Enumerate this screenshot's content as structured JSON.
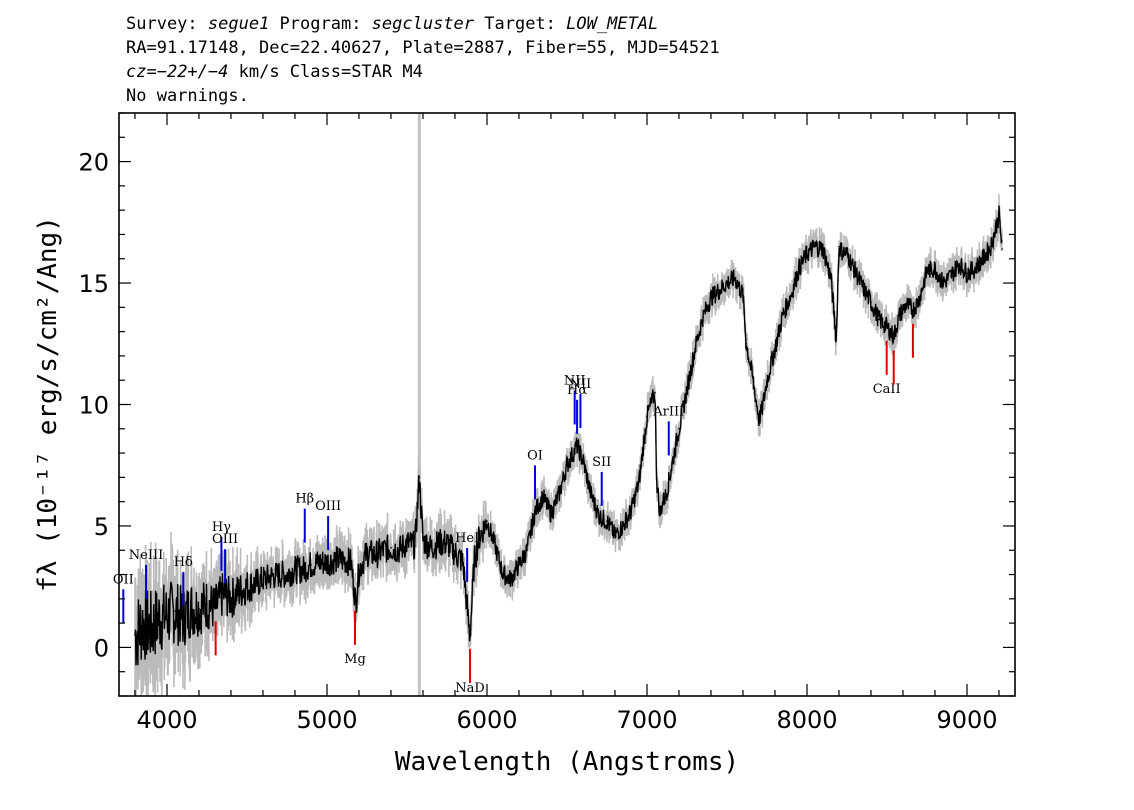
{
  "header": {
    "line1": {
      "survey_label": "Survey: ",
      "survey": "segue1",
      "program_label": " Program: ",
      "program": "segcluster",
      "target_label": " Target: ",
      "target": "LOW_METAL"
    },
    "line2": "RA=91.17148, Dec=22.40627, Plate=2887, Fiber=55, MJD=54521",
    "line3": {
      "cz_label": "cz",
      "cz_value": "=−22+/−4",
      "cz_rest": " km/s Class=STAR M4"
    },
    "line4": "No warnings."
  },
  "chart_data": {
    "type": "line",
    "xlabel": "Wavelength (Angstroms)",
    "ylabel": "fλ (10⁻¹⁷ erg/s/cm²/Ang)",
    "xlim": [
      3700,
      9300
    ],
    "ylim": [
      -2,
      22
    ],
    "x_ticks": [
      4000,
      5000,
      6000,
      7000,
      8000,
      9000
    ],
    "y_ticks": [
      0,
      5,
      10,
      15,
      20
    ],
    "sky_line_x": 5577,
    "colors": {
      "flux": "#000000",
      "error": "#bbbbbb",
      "emission": "#0000dd",
      "absorption": "#dd0000",
      "sky": "#c0c0c0"
    },
    "series": [
      {
        "x": [
          3800,
          3850,
          3900,
          3950,
          4000,
          4050,
          4100,
          4150,
          4200,
          4250,
          4300,
          4350,
          4400,
          4450,
          4500,
          4550,
          4600,
          4650,
          4700,
          4750,
          4800,
          4850,
          4900,
          4950,
          5000,
          5050,
          5100,
          5150,
          5180,
          5200,
          5250,
          5300,
          5350,
          5400,
          5450,
          5500,
          5550,
          5577,
          5600,
          5650,
          5700,
          5750,
          5800,
          5850,
          5893,
          5920,
          5950,
          6000,
          6050,
          6100,
          6150,
          6200,
          6250,
          6300,
          6350,
          6400,
          6450,
          6500,
          6563,
          6600,
          6650,
          6700,
          6750,
          6800,
          6850,
          6900,
          6950,
          7000,
          7050,
          7060,
          7080,
          7100,
          7120,
          7150,
          7200,
          7250,
          7300,
          7350,
          7400,
          7450,
          7500,
          7550,
          7600,
          7620,
          7650,
          7700,
          7720,
          7750,
          7800,
          7850,
          7900,
          7950,
          8000,
          8050,
          8100,
          8150,
          8183,
          8200,
          8220,
          8250,
          8300,
          8350,
          8400,
          8450,
          8498,
          8542,
          8580,
          8620,
          8662,
          8700,
          8750,
          8800,
          8850,
          8900,
          8950,
          9000,
          9050,
          9100,
          9150,
          9200,
          9220
        ],
        "y": [
          0.5,
          1,
          0.8,
          1.2,
          1.3,
          1.5,
          1.2,
          1.6,
          1.6,
          1.8,
          1.6,
          2.2,
          2,
          2.3,
          2.5,
          2.6,
          2.8,
          2.9,
          3,
          3,
          3.2,
          3.2,
          3.4,
          3.5,
          3.5,
          3.6,
          3.6,
          3.5,
          1.8,
          3.2,
          3.9,
          3.8,
          4,
          4.1,
          4,
          4.3,
          4.2,
          7,
          4.4,
          4.1,
          4.3,
          4.3,
          3.9,
          3.5,
          0.4,
          3.5,
          4.5,
          5.2,
          4.2,
          3,
          2.8,
          3.4,
          4,
          5.6,
          6.2,
          5.5,
          6.3,
          7.5,
          8.3,
          7.7,
          6.3,
          5.4,
          5.2,
          4.6,
          5,
          5.6,
          6.8,
          9.5,
          10.5,
          7,
          5.5,
          6,
          6.3,
          7.3,
          9,
          10.6,
          12.3,
          13.6,
          14.4,
          14.7,
          15,
          15.2,
          14.5,
          12.5,
          11.5,
          9.4,
          9.8,
          11,
          12.3,
          13.7,
          14.5,
          15.6,
          16.2,
          16.5,
          16.4,
          15.2,
          12.7,
          16.5,
          16.3,
          16.2,
          15.5,
          14.8,
          14.2,
          13.5,
          13.2,
          12.8,
          13.7,
          14.1,
          13.9,
          14.3,
          15.5,
          15.6,
          15,
          15.3,
          15.8,
          15.4,
          15.6,
          16,
          16.5,
          17.8,
          16.4
        ]
      }
    ],
    "emission_lines": [
      {
        "label": "OII",
        "x": 3727
      },
      {
        "label": "NeIII",
        "x": 3869
      },
      {
        "label": "Hδ",
        "x": 4102
      },
      {
        "label": "Hγ",
        "x": 4340
      },
      {
        "label": "OIII",
        "x": 4363
      },
      {
        "label": "Hβ",
        "x": 4861
      },
      {
        "label": "OIII",
        "x": 5007
      },
      {
        "label": "HeI",
        "x": 5876
      },
      {
        "label": "OI",
        "x": 6300
      },
      {
        "label": "NII",
        "x": 6548
      },
      {
        "label": "Hα",
        "x": 6563
      },
      {
        "label": "NII",
        "x": 6584
      },
      {
        "label": "SII",
        "x": 6717
      },
      {
        "label": "ArIII",
        "x": 7136
      }
    ],
    "absorption_lines": [
      {
        "label": "",
        "x": 4304
      },
      {
        "label": "Mg",
        "x": 5175
      },
      {
        "label": "NaD",
        "x": 5894
      },
      {
        "label": "CaII",
        "x": 8498
      },
      {
        "label": "",
        "x": 8542
      },
      {
        "label": "",
        "x": 8662
      }
    ]
  }
}
